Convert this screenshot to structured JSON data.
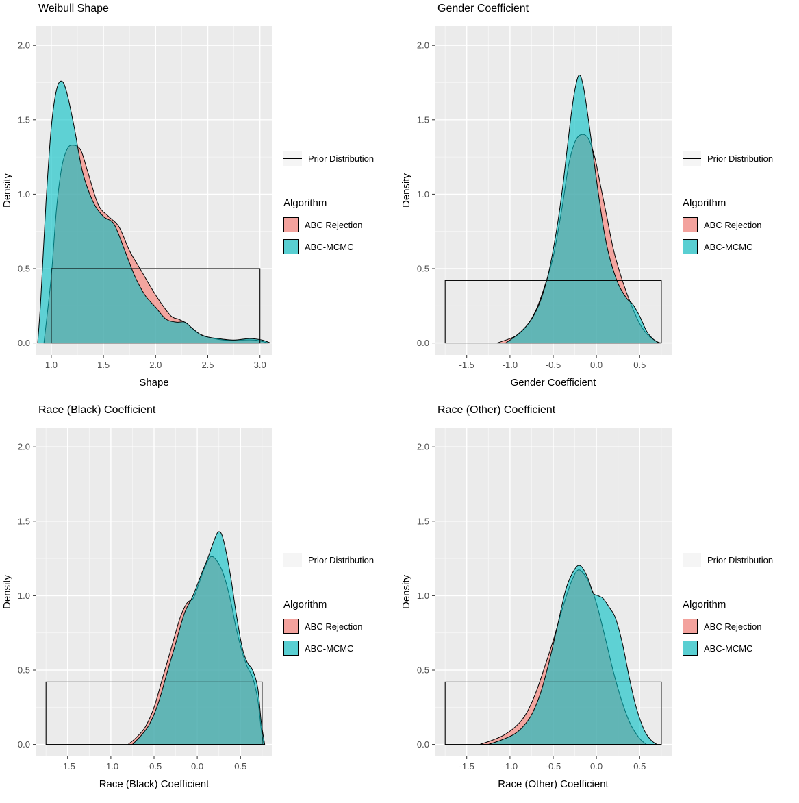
{
  "colors": {
    "panel_bg": "#EBEBEB",
    "grid_major": "#FFFFFF",
    "grid_minor": "#F7F7F7",
    "tick_label": "#4D4D4D",
    "axis_title": "#000000",
    "abc_rejection": "#F8766D",
    "abc_mcmc": "#00BFC4",
    "prior_line": "#000000"
  },
  "legend": {
    "prior_label": "Prior Distribution",
    "algorithm_title": "Algorithm",
    "items": [
      {
        "label": "ABC Rejection",
        "color": "#F8766D"
      },
      {
        "label": "ABC-MCMC",
        "color": "#00BFC4"
      }
    ]
  },
  "chart_data": [
    {
      "type": "area",
      "title": "Weibull Shape",
      "xlabel": "Shape",
      "ylabel": "Density",
      "xlim": [
        0.85,
        3.12
      ],
      "ylim": [
        -0.08,
        2.13
      ],
      "xticks": {
        "values": [
          1.0,
          1.5,
          2.0,
          2.5,
          3.0
        ],
        "labels": [
          "1.0",
          "1.5",
          "2.0",
          "2.5",
          "3.0"
        ]
      },
      "yticks": {
        "values": [
          0.0,
          0.5,
          1.0,
          1.5,
          2.0
        ],
        "labels": [
          "0.0",
          "0.5",
          "1.0",
          "1.5",
          "2.0"
        ]
      },
      "grid": true,
      "legend_position": "right",
      "prior": {
        "label": "Prior Distribution",
        "xmin": 1.0,
        "xmax": 3.0,
        "height": 0.5
      },
      "series": [
        {
          "name": "ABC Rejection",
          "x": [
            0.93,
            1.0,
            1.05,
            1.1,
            1.15,
            1.2,
            1.28,
            1.35,
            1.45,
            1.55,
            1.65,
            1.75,
            1.85,
            1.95,
            2.05,
            2.15,
            2.22,
            2.3,
            2.4,
            2.5,
            2.65,
            2.8,
            2.95,
            3.08
          ],
          "y": [
            0.0,
            0.45,
            0.9,
            1.18,
            1.3,
            1.33,
            1.3,
            1.15,
            0.93,
            0.85,
            0.78,
            0.62,
            0.5,
            0.38,
            0.27,
            0.18,
            0.16,
            0.13,
            0.07,
            0.04,
            0.02,
            0.02,
            0.02,
            0.0
          ]
        },
        {
          "name": "ABC-MCMC",
          "x": [
            0.87,
            0.9,
            0.95,
            1.0,
            1.05,
            1.1,
            1.15,
            1.22,
            1.3,
            1.4,
            1.5,
            1.6,
            1.7,
            1.8,
            1.9,
            2.0,
            2.1,
            2.2,
            2.28,
            2.35,
            2.45,
            2.6,
            2.75,
            2.9,
            3.02,
            3.1
          ],
          "y": [
            0.0,
            0.3,
            0.95,
            1.45,
            1.7,
            1.76,
            1.68,
            1.45,
            1.15,
            0.95,
            0.85,
            0.8,
            0.63,
            0.45,
            0.32,
            0.24,
            0.16,
            0.14,
            0.14,
            0.1,
            0.05,
            0.03,
            0.02,
            0.03,
            0.02,
            0.0
          ]
        }
      ]
    },
    {
      "type": "area",
      "title": "Gender Coefficient",
      "xlabel": "Gender Coefficient",
      "ylabel": "Density",
      "xlim": [
        -1.87,
        0.87
      ],
      "ylim": [
        -0.08,
        2.13
      ],
      "xticks": {
        "values": [
          -1.5,
          -1.0,
          -0.5,
          0.0,
          0.5
        ],
        "labels": [
          "-1.5",
          "-1.0",
          "-0.5",
          "0.0",
          "0.5"
        ]
      },
      "yticks": {
        "values": [
          0.0,
          0.5,
          1.0,
          1.5,
          2.0
        ],
        "labels": [
          "0.0",
          "0.5",
          "1.0",
          "1.5",
          "2.0"
        ]
      },
      "grid": true,
      "legend_position": "right",
      "prior": {
        "label": "Prior Distribution",
        "xmin": -1.75,
        "xmax": 0.75,
        "height": 0.42
      },
      "series": [
        {
          "name": "ABC Rejection",
          "x": [
            -1.15,
            -1.0,
            -0.9,
            -0.8,
            -0.7,
            -0.6,
            -0.5,
            -0.4,
            -0.32,
            -0.25,
            -0.18,
            -0.1,
            -0.02,
            0.05,
            0.12,
            0.2,
            0.3,
            0.4,
            0.5,
            0.6,
            0.7,
            0.75
          ],
          "y": [
            0.0,
            0.03,
            0.06,
            0.12,
            0.22,
            0.38,
            0.58,
            0.9,
            1.2,
            1.35,
            1.4,
            1.38,
            1.25,
            1.05,
            0.85,
            0.62,
            0.42,
            0.26,
            0.13,
            0.05,
            0.01,
            0.0
          ]
        },
        {
          "name": "ABC-MCMC",
          "x": [
            -1.05,
            -0.95,
            -0.85,
            -0.75,
            -0.65,
            -0.55,
            -0.45,
            -0.38,
            -0.3,
            -0.25,
            -0.2,
            -0.15,
            -0.08,
            0.0,
            0.08,
            0.15,
            0.25,
            0.35,
            0.42,
            0.5,
            0.58,
            0.65,
            0.72
          ],
          "y": [
            0.0,
            0.04,
            0.09,
            0.16,
            0.28,
            0.48,
            0.8,
            1.1,
            1.5,
            1.7,
            1.8,
            1.72,
            1.45,
            1.1,
            0.78,
            0.58,
            0.4,
            0.3,
            0.26,
            0.18,
            0.08,
            0.03,
            0.0
          ]
        }
      ]
    },
    {
      "type": "area",
      "title": "Race (Black) Coefficient",
      "xlabel": "Race (Black) Coefficient",
      "ylabel": "Density",
      "xlim": [
        -1.87,
        0.87
      ],
      "ylim": [
        -0.08,
        2.13
      ],
      "xticks": {
        "values": [
          -1.5,
          -1.0,
          -0.5,
          0.0,
          0.5
        ],
        "labels": [
          "-1.5",
          "-1.0",
          "-0.5",
          "0.0",
          "0.5"
        ]
      },
      "yticks": {
        "values": [
          0.0,
          0.5,
          1.0,
          1.5,
          2.0
        ],
        "labels": [
          "0.0",
          "0.5",
          "1.0",
          "1.5",
          "2.0"
        ]
      },
      "grid": true,
      "legend_position": "right",
      "prior": {
        "label": "Prior Distribution",
        "xmin": -1.75,
        "xmax": 0.75,
        "height": 0.42
      },
      "series": [
        {
          "name": "ABC Rejection",
          "x": [
            -0.8,
            -0.7,
            -0.6,
            -0.5,
            -0.4,
            -0.3,
            -0.2,
            -0.12,
            -0.05,
            0.0,
            0.08,
            0.15,
            0.22,
            0.3,
            0.38,
            0.45,
            0.52,
            0.58,
            0.64,
            0.7,
            0.74,
            0.77
          ],
          "y": [
            0.0,
            0.05,
            0.12,
            0.25,
            0.45,
            0.65,
            0.85,
            0.95,
            0.98,
            1.05,
            1.18,
            1.26,
            1.24,
            1.15,
            0.98,
            0.78,
            0.62,
            0.52,
            0.45,
            0.3,
            0.1,
            0.0
          ]
        },
        {
          "name": "ABC-MCMC",
          "x": [
            -0.75,
            -0.65,
            -0.55,
            -0.45,
            -0.35,
            -0.25,
            -0.15,
            -0.05,
            0.05,
            0.12,
            0.2,
            0.25,
            0.3,
            0.38,
            0.45,
            0.52,
            0.58,
            0.64,
            0.7,
            0.74,
            0.78
          ],
          "y": [
            0.0,
            0.06,
            0.14,
            0.28,
            0.48,
            0.68,
            0.88,
            1.0,
            1.15,
            1.25,
            1.38,
            1.43,
            1.38,
            1.15,
            0.88,
            0.65,
            0.55,
            0.5,
            0.38,
            0.15,
            0.0
          ]
        }
      ]
    },
    {
      "type": "area",
      "title": "Race (Other) Coefficient",
      "xlabel": "Race (Other) Coefficient",
      "ylabel": "Density",
      "xlim": [
        -1.87,
        0.87
      ],
      "ylim": [
        -0.08,
        2.13
      ],
      "xticks": {
        "values": [
          -1.5,
          -1.0,
          -0.5,
          0.0,
          0.5
        ],
        "labels": [
          "-1.5",
          "-1.0",
          "-0.5",
          "0.0",
          "0.5"
        ]
      },
      "yticks": {
        "values": [
          0.0,
          0.5,
          1.0,
          1.5,
          2.0
        ],
        "labels": [
          "0.0",
          "0.5",
          "1.0",
          "1.5",
          "2.0"
        ]
      },
      "grid": true,
      "legend_position": "right",
      "prior": {
        "label": "Prior Distribution",
        "xmin": -1.75,
        "xmax": 0.75,
        "height": 0.42
      },
      "series": [
        {
          "name": "ABC Rejection",
          "x": [
            -1.35,
            -1.2,
            -1.05,
            -0.9,
            -0.8,
            -0.7,
            -0.6,
            -0.5,
            -0.4,
            -0.3,
            -0.22,
            -0.15,
            -0.08,
            0.0,
            0.1,
            0.2,
            0.3,
            0.4,
            0.5,
            0.58
          ],
          "y": [
            0.0,
            0.03,
            0.07,
            0.14,
            0.22,
            0.35,
            0.52,
            0.7,
            0.9,
            1.08,
            1.17,
            1.15,
            1.08,
            0.95,
            0.72,
            0.48,
            0.28,
            0.13,
            0.04,
            0.0
          ]
        },
        {
          "name": "ABC-MCMC",
          "x": [
            -1.25,
            -1.1,
            -0.95,
            -0.85,
            -0.75,
            -0.65,
            -0.55,
            -0.45,
            -0.35,
            -0.25,
            -0.18,
            -0.1,
            -0.04,
            0.02,
            0.08,
            0.15,
            0.22,
            0.3,
            0.38,
            0.46,
            0.55,
            0.63,
            0.7
          ],
          "y": [
            0.0,
            0.03,
            0.07,
            0.12,
            0.2,
            0.34,
            0.55,
            0.8,
            1.05,
            1.18,
            1.2,
            1.12,
            1.02,
            1.0,
            0.98,
            0.92,
            0.85,
            0.68,
            0.45,
            0.25,
            0.1,
            0.03,
            0.0
          ]
        }
      ]
    }
  ]
}
